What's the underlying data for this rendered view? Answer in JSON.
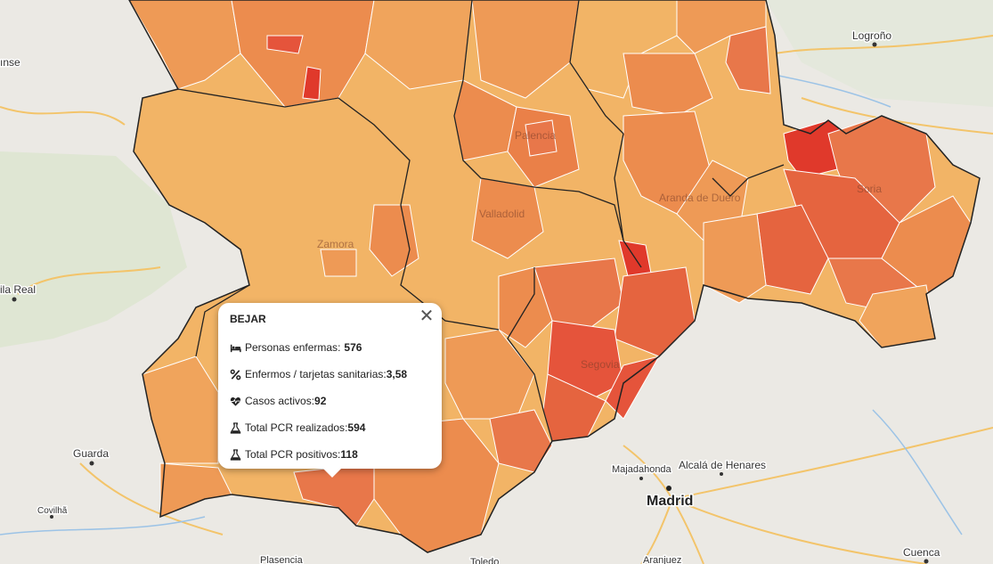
{
  "map": {
    "cities": {
      "logrono": "Logroño",
      "madrid": "Madrid",
      "majadahonda": "Majadahonda",
      "alcala": "Alcalá de Henares",
      "guarda": "Guarda",
      "covilha": "Covilhã",
      "vila_real": "ila Real",
      "bragance": "ınse",
      "cuenca": "Cuenca",
      "plasencia": "Plasencia",
      "aranjuez": "Aranjuez",
      "toledo": "Toledo"
    },
    "overlay": {
      "soria": "Soria",
      "segovia": "Segovia",
      "palencia": "Palencia",
      "valladolid": "Valladolid",
      "aranda": "Aranda de Duero",
      "zamora": "Zamora"
    }
  },
  "popup": {
    "title": "BEJAR",
    "close_glyph": "✕",
    "rows": [
      {
        "icon": "bed-icon",
        "label": "Personas enfermas",
        "value": "576"
      },
      {
        "icon": "percent-icon",
        "label": "Enfermos / tarjetas sanitarias",
        "value": "3,58"
      },
      {
        "icon": "heartbeat-icon",
        "label": "Casos activos",
        "value": "92"
      },
      {
        "icon": "flask-icon",
        "label": "Total PCR realizados",
        "value": "594"
      },
      {
        "icon": "flask-icon",
        "label": "Total PCR positivos",
        "value": "118"
      }
    ],
    "separator": " : "
  },
  "colors": {
    "low": "#f2b466",
    "mid": "#ee9a56",
    "high": "#e8774a",
    "very_high": "#e5543b",
    "max": "#e0392b"
  }
}
